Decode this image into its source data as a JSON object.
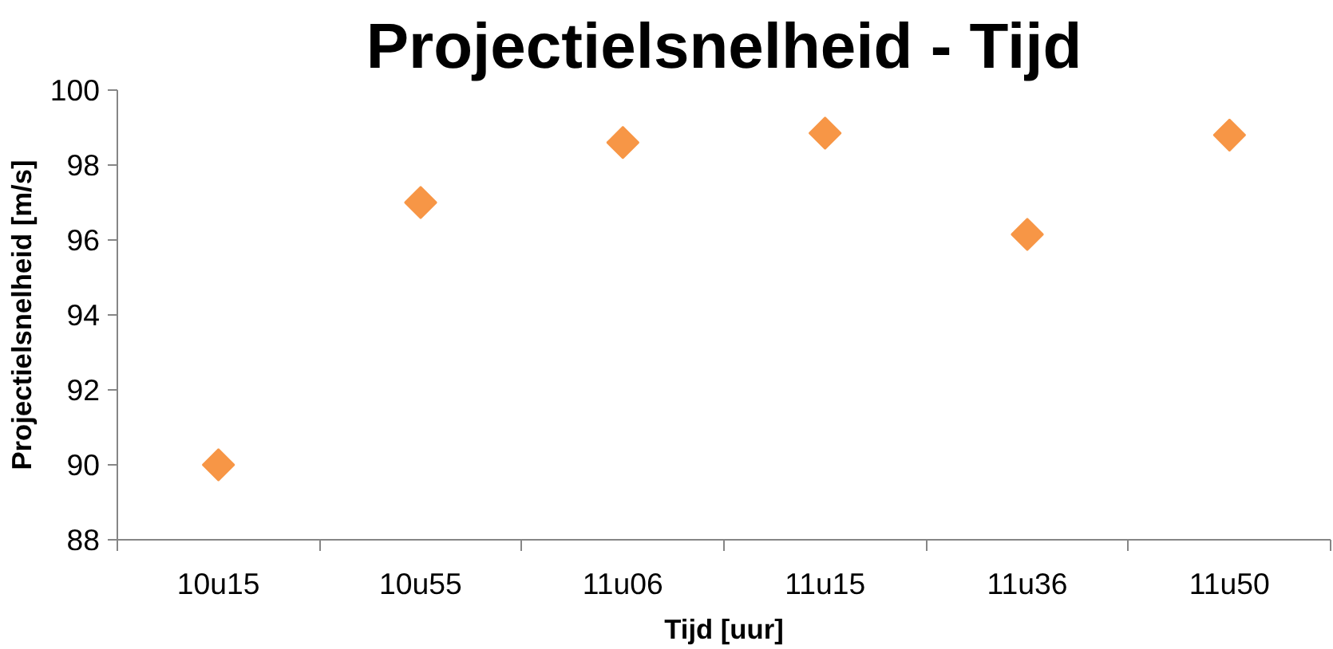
{
  "chart_data": {
    "type": "scatter",
    "title": "Projectielsnelheid - Tijd",
    "xlabel": "Tijd [uur]",
    "ylabel": "Projectielsnelheid [m/s]",
    "categories": [
      "10u15",
      "10u55",
      "11u06",
      "11u15",
      "11u36",
      "11u50"
    ],
    "series": [
      {
        "color": "#f79646",
        "values": [
          90,
          97.0,
          98.6,
          98.85,
          96.15,
          98.8
        ]
      }
    ],
    "ylim": [
      88,
      100
    ],
    "yticks": [
      88,
      90,
      92,
      94,
      96,
      98,
      100
    ],
    "grid": false,
    "marker": "diamond"
  }
}
